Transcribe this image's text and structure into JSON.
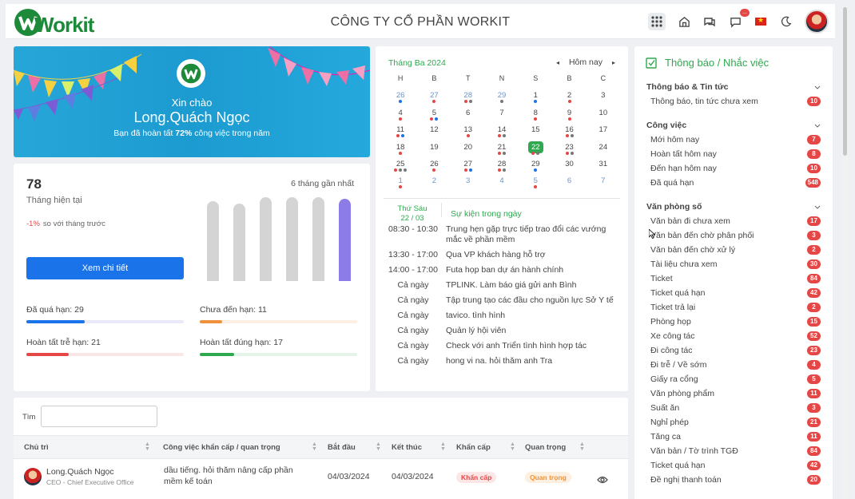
{
  "header": {
    "title": "CÔNG TY CỔ PHẦN WORKIT",
    "logo_text": "Workit",
    "notif_count": "..."
  },
  "banner": {
    "greeting": "Xin chào",
    "name": "Long.Quách Ngọc",
    "sub_pre": "Bạn đã hoàn tất ",
    "sub_pct": "72%",
    "sub_post": " công việc trong năm"
  },
  "stats": {
    "value": "78",
    "period": "Tháng hiện tại",
    "delta": "-1%",
    "delta_text": "so với tháng trước",
    "months_label": "6 tháng gần nhất",
    "button": "Xem chi tiết",
    "bar_levels": [
      0.93,
      0.9,
      0.97,
      0.97,
      0.97,
      0.95
    ],
    "progress": [
      {
        "label": "Đã quá hạn: 29",
        "color": "#1a73e8",
        "track": "#e8ebf7",
        "fill": 0.37
      },
      {
        "label": "Chưa đến hạn: 11",
        "color": "#f0923b",
        "track": "#fdefe3",
        "fill": 0.14
      },
      {
        "label": "Hoàn tất trễ hạn: 21",
        "color": "#e54646",
        "track": "#fbe6e6",
        "fill": 0.27
      },
      {
        "label": "Hoàn tất đúng hạn: 17",
        "color": "#2fa84f",
        "track": "#e4f4e8",
        "fill": 0.22
      }
    ]
  },
  "calendar": {
    "month": "Tháng Ba 2024",
    "today_label": "Hôm nay",
    "prev": "◂",
    "next": "▸",
    "weekdays": [
      "H",
      "B",
      "T",
      "N",
      "S",
      "B",
      "C"
    ],
    "weeks": [
      [
        {
          "d": "26",
          "m": 1,
          "dots": [
            "#1a73e8"
          ]
        },
        {
          "d": "27",
          "m": 1,
          "dots": [
            "#e54646"
          ]
        },
        {
          "d": "28",
          "m": 1,
          "dots": [
            "#e54646",
            "#777"
          ]
        },
        {
          "d": "29",
          "m": 1,
          "dots": [
            "#777"
          ]
        },
        {
          "d": "1",
          "dots": [
            "#1a73e8"
          ]
        },
        {
          "d": "2",
          "dots": [
            "#e54646"
          ]
        },
        {
          "d": "3",
          "dots": []
        }
      ],
      [
        {
          "d": "4",
          "dots": [
            "#e54646"
          ]
        },
        {
          "d": "5",
          "dots": [
            "#e54646",
            "#1a73e8"
          ]
        },
        {
          "d": "6",
          "dots": []
        },
        {
          "d": "7",
          "dots": []
        },
        {
          "d": "8",
          "dots": [
            "#e54646"
          ]
        },
        {
          "d": "9",
          "dots": [
            "#e54646"
          ]
        },
        {
          "d": "10",
          "dots": []
        }
      ],
      [
        {
          "d": "11",
          "dots": [
            "#e54646",
            "#1a73e8"
          ]
        },
        {
          "d": "12",
          "dots": []
        },
        {
          "d": "13",
          "dots": [
            "#e54646"
          ]
        },
        {
          "d": "14",
          "dots": [
            "#e54646",
            "#777"
          ]
        },
        {
          "d": "15",
          "dots": []
        },
        {
          "d": "16",
          "dots": [
            "#e54646",
            "#777"
          ]
        },
        {
          "d": "17",
          "dots": []
        }
      ],
      [
        {
          "d": "18",
          "dots": [
            "#e54646"
          ]
        },
        {
          "d": "19",
          "dots": []
        },
        {
          "d": "20",
          "dots": []
        },
        {
          "d": "21",
          "dots": [
            "#e54646",
            "#777"
          ]
        },
        {
          "d": "22",
          "today": true,
          "dots": [
            "#e54646",
            "#777"
          ]
        },
        {
          "d": "23",
          "dots": [
            "#e54646",
            "#777"
          ]
        },
        {
          "d": "24",
          "dots": []
        }
      ],
      [
        {
          "d": "25",
          "dots": [
            "#e54646",
            "#777",
            "#777"
          ]
        },
        {
          "d": "26",
          "dots": [
            "#e54646"
          ]
        },
        {
          "d": "27",
          "dots": [
            "#e54646",
            "#1a73e8"
          ]
        },
        {
          "d": "28",
          "dots": [
            "#e54646",
            "#777"
          ]
        },
        {
          "d": "29",
          "dots": [
            "#1a73e8"
          ]
        },
        {
          "d": "30",
          "dots": []
        },
        {
          "d": "31",
          "dots": []
        }
      ],
      [
        {
          "d": "1",
          "m": 1,
          "dots": [
            "#e54646"
          ]
        },
        {
          "d": "2",
          "m": 1,
          "dots": []
        },
        {
          "d": "3",
          "m": 1,
          "dots": []
        },
        {
          "d": "4",
          "m": 1,
          "dots": []
        },
        {
          "d": "5",
          "m": 1,
          "dots": [
            "#e54646"
          ]
        },
        {
          "d": "6",
          "m": 1,
          "dots": []
        },
        {
          "d": "7",
          "m": 1,
          "dots": []
        }
      ]
    ],
    "event_day": "Thứ Sáu",
    "event_date": "22 / 03",
    "events_title": "Sự kiện trong ngày",
    "events": [
      {
        "time": "08:30 - 10:30",
        "desc": "Trung hẹn gặp trực tiếp trao đổi các vướng mắc về phần mềm"
      },
      {
        "time": "13:30 - 17:00",
        "desc": "Qua VP khách hàng hỗ trợ"
      },
      {
        "time": "14:00 - 17:00",
        "desc": "Futa họp ban dự án hành chính"
      },
      {
        "time": "Cả ngày",
        "desc": "TPLINK. Làm báo giá gửi anh Bình"
      },
      {
        "time": "Cả ngày",
        "desc": "Tập trung tạo các đầu cho nguồn lực Sở Y tế"
      },
      {
        "time": "Cả ngày",
        "desc": "tavico. tình hình"
      },
      {
        "time": "Cả ngày",
        "desc": "Quản lý hội viên"
      },
      {
        "time": "Cả ngày",
        "desc": "Check với anh Triển tình hình hợp tác"
      },
      {
        "time": "Cả ngày",
        "desc": "hong vi na. hỏi thăm anh Tra"
      }
    ]
  },
  "sidebar": {
    "title": "Thông báo / Nhắc việc",
    "sections": [
      {
        "title": "Thông báo & Tin tức",
        "items": [
          {
            "label": "Thông báo, tin tức chưa xem",
            "count": "10"
          }
        ]
      },
      {
        "title": "Công việc",
        "items": [
          {
            "label": "Mới hôm nay",
            "count": "7"
          },
          {
            "label": "Hoàn tất hôm nay",
            "count": "8"
          },
          {
            "label": "Đến hạn hôm nay",
            "count": "10"
          },
          {
            "label": "Đã quá hạn",
            "count": "548"
          }
        ]
      },
      {
        "title": "Văn phòng số",
        "items": [
          {
            "label": "Văn bản đi chưa xem",
            "count": "17"
          },
          {
            "label": "Văn bản đến chờ phân phối",
            "count": "3"
          },
          {
            "label": "Văn bản đến chờ xử lý",
            "count": "2"
          },
          {
            "label": "Tài liệu chưa xem",
            "count": "30"
          },
          {
            "label": "Ticket",
            "count": "84"
          },
          {
            "label": "Ticket quá hạn",
            "count": "42"
          },
          {
            "label": "Ticket trả lại",
            "count": "2"
          },
          {
            "label": "Phòng họp",
            "count": "15"
          },
          {
            "label": "Xe công tác",
            "count": "52"
          },
          {
            "label": "Đi công tác",
            "count": "23"
          },
          {
            "label": "Đi trễ / Về sớm",
            "count": "4"
          },
          {
            "label": "Giấy ra cổng",
            "count": "5"
          },
          {
            "label": "Văn phòng phẩm",
            "count": "11"
          },
          {
            "label": "Suất ăn",
            "count": "3"
          },
          {
            "label": "Nghỉ phép",
            "count": "21"
          },
          {
            "label": "Tăng ca",
            "count": "11"
          },
          {
            "label": "Văn bản / Tờ trình TGĐ",
            "count": "84"
          },
          {
            "label": "Ticket quá hạn",
            "count": "42"
          },
          {
            "label": "Đề nghị thanh toán",
            "count": "20"
          }
        ]
      }
    ]
  },
  "table": {
    "search_label": "Tìm",
    "columns": [
      "Chủ trì",
      "Công việc khẩn cấp / quan trọng",
      "Bắt đầu",
      "Kết thúc",
      "Khẩn cấp",
      "Quan trọng"
    ],
    "rows": [
      {
        "owner": "Long.Quách Ngọc",
        "role": "CEO - Chief Executive Office",
        "task": "dầu tiếng. hỏi thăm nâng cấp phần mềm kế toán",
        "start": "04/03/2024",
        "end": "04/03/2024",
        "urgent": "Khẩn cấp",
        "important": "Quan trọng"
      }
    ]
  }
}
